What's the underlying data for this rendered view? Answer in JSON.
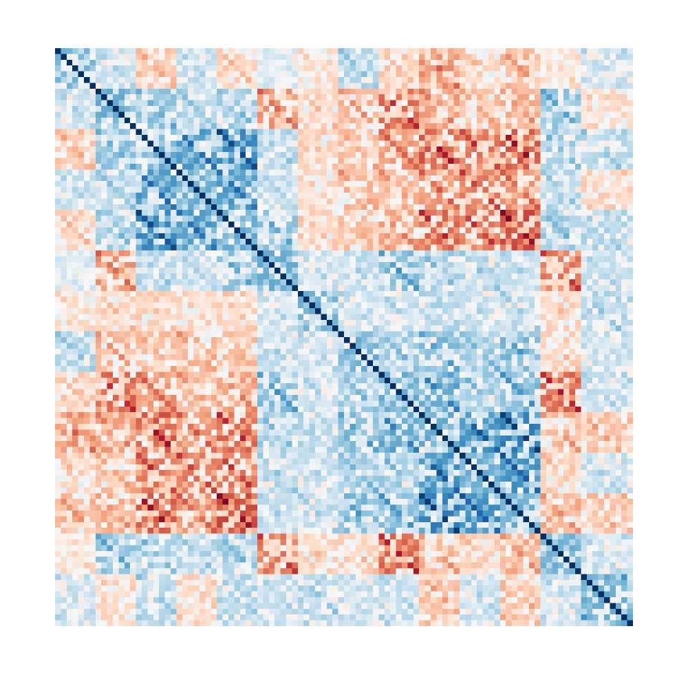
{
  "chart_data": {
    "type": "heatmap",
    "title": "",
    "xlabel": "",
    "ylabel": "",
    "n_rows": 100,
    "n_cols": 100,
    "value_range": [
      -1,
      1
    ],
    "diagonal_value": 1,
    "colormap": "RdBu",
    "colorbar": false,
    "axes_visible": false,
    "grid": false,
    "block_size": 7,
    "n_blocks": 14,
    "block_pattern": [
      [
        1.0,
        0.12,
        -0.15,
        0.1,
        -0.1,
        0.05,
        -0.08,
        0.15,
        -0.12,
        -0.3,
        -0.12,
        -0.18,
        -0.05,
        0.1
      ],
      [
        0.12,
        1.0,
        0.25,
        0.15,
        0.2,
        -0.3,
        -0.1,
        -0.2,
        -0.45,
        -0.25,
        -0.15,
        -0.2,
        0.25,
        -0.08
      ],
      [
        -0.15,
        0.25,
        1.0,
        0.45,
        0.55,
        0.15,
        -0.1,
        -0.15,
        -0.3,
        -0.5,
        -0.4,
        -0.5,
        0.2,
        0.15
      ],
      [
        0.1,
        0.15,
        0.45,
        1.0,
        0.45,
        0.1,
        -0.08,
        -0.2,
        -0.2,
        -0.3,
        -0.4,
        -0.3,
        0.15,
        -0.1
      ],
      [
        -0.1,
        0.2,
        0.55,
        0.45,
        1.0,
        0.25,
        -0.12,
        -0.15,
        -0.25,
        -0.45,
        -0.4,
        -0.55,
        0.2,
        0.15
      ],
      [
        0.05,
        -0.3,
        0.15,
        0.1,
        0.25,
        1.0,
        0.1,
        0.12,
        0.3,
        0.2,
        0.15,
        0.12,
        -0.4,
        0.1
      ],
      [
        -0.08,
        -0.1,
        -0.1,
        -0.08,
        -0.12,
        0.1,
        1.0,
        0.1,
        0.1,
        0.15,
        0.1,
        0.12,
        -0.1,
        0.15
      ],
      [
        0.15,
        -0.2,
        -0.15,
        -0.2,
        -0.15,
        0.12,
        0.1,
        1.0,
        0.2,
        0.3,
        0.2,
        0.3,
        -0.1,
        0.1
      ],
      [
        -0.12,
        -0.45,
        -0.3,
        -0.2,
        -0.25,
        0.3,
        0.1,
        0.2,
        1.0,
        0.4,
        0.2,
        0.3,
        -0.45,
        0.1
      ],
      [
        -0.3,
        -0.25,
        -0.5,
        -0.3,
        -0.45,
        0.2,
        0.15,
        0.3,
        0.4,
        1.0,
        0.5,
        0.6,
        -0.2,
        -0.15
      ],
      [
        -0.12,
        -0.15,
        -0.4,
        -0.4,
        -0.4,
        0.15,
        0.1,
        0.2,
        0.2,
        0.5,
        1.0,
        0.5,
        -0.1,
        0.1
      ],
      [
        -0.18,
        -0.2,
        -0.5,
        -0.3,
        -0.55,
        0.12,
        0.12,
        0.3,
        0.3,
        0.6,
        0.5,
        1.0,
        -0.2,
        -0.15
      ],
      [
        -0.05,
        0.25,
        0.2,
        0.15,
        0.2,
        -0.4,
        -0.1,
        -0.1,
        -0.45,
        -0.2,
        -0.1,
        -0.2,
        1.0,
        0.1
      ],
      [
        0.1,
        -0.08,
        0.15,
        -0.1,
        0.15,
        0.1,
        0.15,
        0.1,
        0.1,
        -0.15,
        0.1,
        -0.15,
        0.1,
        1.0
      ]
    ],
    "colors": {
      "strong_positive": "#053061",
      "positive": "#2166ac",
      "weak_positive": "#92c5de",
      "neutral": "#f7f7f7",
      "weak_negative": "#f4a582",
      "negative": "#d6604d",
      "strong_negative": "#b2182b"
    }
  }
}
